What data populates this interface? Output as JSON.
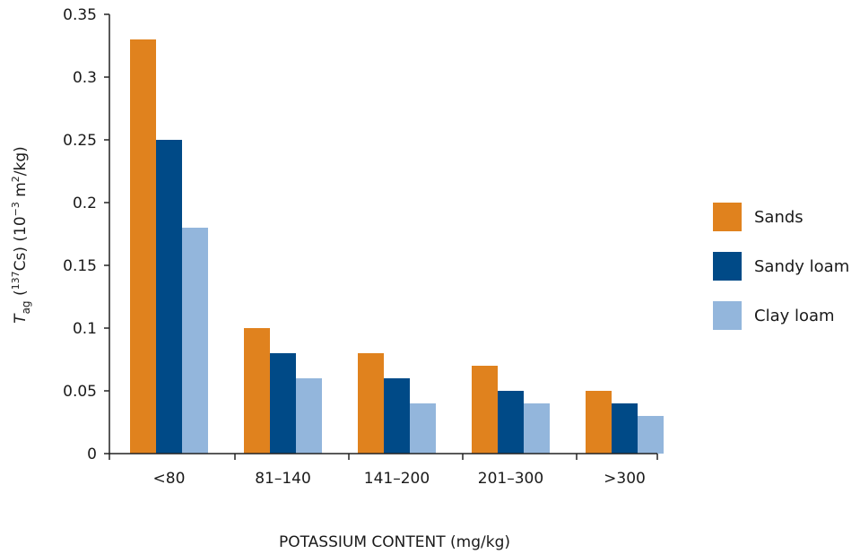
{
  "chart_data": {
    "type": "bar",
    "categories": [
      "<80",
      "81–140",
      "141–200",
      "201–300",
      ">300"
    ],
    "series": [
      {
        "name": "Sands",
        "values": [
          0.33,
          0.1,
          0.08,
          0.07,
          0.05
        ],
        "color": "#E0821E"
      },
      {
        "name": "Sandy loam",
        "values": [
          0.25,
          0.08,
          0.06,
          0.05,
          0.04
        ],
        "color": "#004A87"
      },
      {
        "name": "Clay loam",
        "values": [
          0.18,
          0.06,
          0.04,
          0.04,
          0.03
        ],
        "color": "#93B6DC"
      }
    ],
    "ylim": [
      0,
      0.35
    ],
    "yticks": [
      "0",
      "0.05",
      "0.1",
      "0.15",
      "0.2",
      "0.25",
      "0.3",
      "0.35"
    ],
    "xlabel": "POTASSIUM CONTENT (mg/kg)",
    "ylabel": {
      "symbol": "T",
      "subscript": "ag",
      "paren_open": " (",
      "mass_number": "137",
      "element": "Cs) (10",
      "exponent": "−3",
      "unit_mid": " m",
      "unit_exp": "2",
      "unit_end": "/kg)"
    },
    "grid": false,
    "legend_position": "right"
  }
}
